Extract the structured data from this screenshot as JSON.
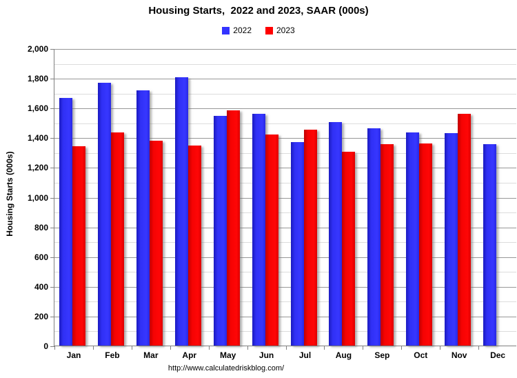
{
  "title": "Housing Starts,  2022 and 2023, SAAR (000s)",
  "footer": "http://www.calculatedriskblog.com/",
  "chart_data": {
    "type": "bar",
    "title": "Housing Starts,  2022 and 2023, SAAR (000s)",
    "categories": [
      "Jan",
      "Feb",
      "Mar",
      "Apr",
      "May",
      "Jun",
      "Jul",
      "Aug",
      "Sep",
      "Oct",
      "Nov",
      "Dec"
    ],
    "series": [
      {
        "name": "2022",
        "color": "#3333ff",
        "values": [
          1666,
          1769,
          1716,
          1803,
          1543,
          1559,
          1371,
          1505,
          1463,
          1432,
          1427,
          1357
        ]
      },
      {
        "name": "2023",
        "color": "#ff0000",
        "values": [
          1340,
          1436,
          1380,
          1348,
          1583,
          1418,
          1451,
          1305,
          1356,
          1360,
          1560,
          null
        ]
      }
    ],
    "xlabel": "",
    "ylabel": "Housing Starts (000s)",
    "ylim": [
      0,
      2000
    ],
    "ytick_step": 200,
    "minor_step": 100,
    "yticks": [
      "0",
      "200",
      "400",
      "600",
      "800",
      "1,000",
      "1,200",
      "1,400",
      "1,600",
      "1,800",
      "2,000"
    ],
    "grid": true,
    "legend_position": "top-center",
    "major_grid_color": "#979797",
    "minor_grid_color": "#dcdcdc"
  }
}
